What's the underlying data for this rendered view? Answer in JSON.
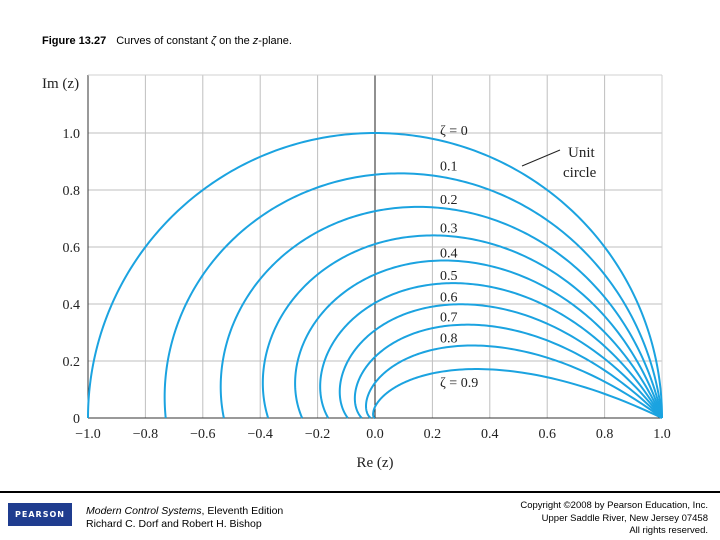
{
  "caption": {
    "figure": "Figure 13.27",
    "text_before": "Curves of constant ",
    "symbol": "ζ",
    "text_mid": " on the ",
    "plane": "z",
    "text_after": "-plane."
  },
  "chart_data": {
    "type": "line",
    "title": "",
    "xlabel": "Re (z)",
    "ylabel": "Im (z)",
    "xlim": [
      -1.0,
      1.0
    ],
    "ylim": [
      0,
      1.0
    ],
    "xticks": [
      "−1.0",
      "−0.8",
      "−0.6",
      "−0.4",
      "−0.2",
      "0.0",
      "0.2",
      "0.4",
      "0.6",
      "0.8",
      "1.0"
    ],
    "yticks": [
      "0",
      "0.2",
      "0.4",
      "0.6",
      "0.8",
      "1.0"
    ],
    "grid": true,
    "curve_color": "#1ba3e0",
    "series": [
      {
        "zeta": 0.0,
        "label": "ζ = 0"
      },
      {
        "zeta": 0.1,
        "label": "0.1"
      },
      {
        "zeta": 0.2,
        "label": "0.2"
      },
      {
        "zeta": 0.3,
        "label": "0.3"
      },
      {
        "zeta": 0.4,
        "label": "0.4"
      },
      {
        "zeta": 0.5,
        "label": "0.5"
      },
      {
        "zeta": 0.6,
        "label": "0.6"
      },
      {
        "zeta": 0.7,
        "label": "0.7"
      },
      {
        "zeta": 0.8,
        "label": "0.8"
      },
      {
        "zeta": 0.9,
        "label": "ζ = 0.9"
      }
    ],
    "annotation": {
      "line1": "Unit",
      "line2": "circle"
    }
  },
  "footer": {
    "publisher": "PEARSON",
    "book_title": "Modern Control Systems",
    "edition": ", Eleventh Edition",
    "authors": "Richard C. Dorf and Robert H. Bishop",
    "copyright_line1": "Copyright ©2008 by Pearson Education, Inc.",
    "copyright_line2": "Upper Saddle River, New Jersey 07458",
    "copyright_line3": "All rights reserved."
  }
}
